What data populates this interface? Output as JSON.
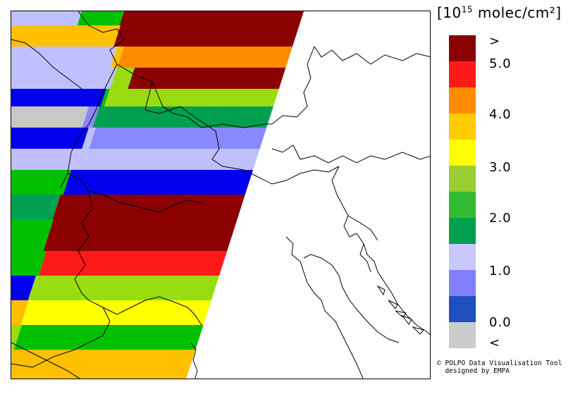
{
  "legend": {
    "title_main": "[10",
    "title_exp": "15",
    "title_unit": " molec/cm²]",
    "colors": [
      "#8b0000",
      "#ff1a1a",
      "#ff8c00",
      "#ffcc00",
      "#ffff00",
      "#9acd32",
      "#33bb33",
      "#00a050",
      "#c8c8ff",
      "#8080ff",
      "#2050c0",
      "#cccccc"
    ],
    "labels": {
      "top": ">",
      "v50": "5.0",
      "v40": "4.0",
      "v30": "3.0",
      "v20": "2.0",
      "v10": "1.0",
      "v00": "0.0",
      "bottom": "<"
    }
  },
  "credit": {
    "line1": "© POLPO Data Visualisation Tool",
    "line2": "  designed by EMPA"
  },
  "swath_colors": {
    "darkred": "#8b0000",
    "red": "#ff1a1a",
    "orange": "#ff8c00",
    "gold": "#ffc000",
    "yellow": "#ffff00",
    "lightgreen": "#99dd11",
    "green": "#00c000",
    "darkgreen": "#00a050",
    "lavender": "#c0c0ff",
    "periwinkle": "#8888ff",
    "blue": "#0000ee",
    "gray": "#c8c8c8"
  }
}
